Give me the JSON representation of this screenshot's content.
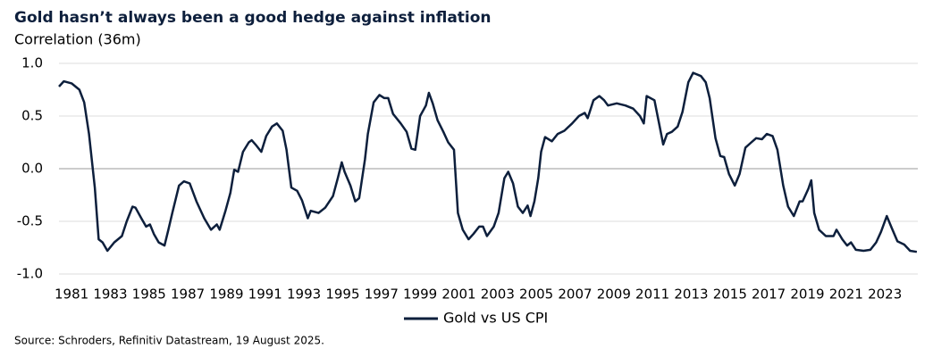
{
  "chart_data": {
    "type": "line",
    "title": "Gold hasn’t always been a good hedge against inflation",
    "subtitle": "Correlation (36m)",
    "source": "Source: Schroders, Refinitiv Datastream, 19 August 2025.",
    "xlim": [
      1980.35,
      2024.7
    ],
    "xticks": [
      1981,
      1983,
      1985,
      1987,
      1989,
      1991,
      1993,
      1995,
      1997,
      1999,
      2001,
      2003,
      2005,
      2007,
      2009,
      2011,
      2013,
      2015,
      2017,
      2019,
      2021,
      2023
    ],
    "ylim": [
      -1,
      1
    ],
    "yticks": [
      {
        "value": 1,
        "label": "1.0"
      },
      0.5,
      {
        "value": 0,
        "label": "0.0"
      },
      -0.5,
      {
        "value": -1,
        "label": "-1.0"
      }
    ],
    "grid": true,
    "legend": "bottom",
    "x": [
      1980.35,
      1980.6,
      1981.0,
      1981.4,
      1981.65,
      1981.9,
      1982.2,
      1982.4,
      1982.6,
      1982.85,
      1983.2,
      1983.6,
      1983.85,
      1984.15,
      1984.3,
      1984.6,
      1984.85,
      1985.05,
      1985.25,
      1985.5,
      1985.8,
      1986.0,
      1986.2,
      1986.55,
      1986.8,
      1987.1,
      1987.45,
      1987.85,
      1988.2,
      1988.5,
      1988.65,
      1988.95,
      1989.2,
      1989.4,
      1989.6,
      1989.85,
      1990.15,
      1990.3,
      1990.5,
      1990.8,
      1991.05,
      1991.35,
      1991.6,
      1991.9,
      1992.1,
      1992.35,
      1992.65,
      1992.9,
      1993.2,
      1993.35,
      1993.75,
      1994.1,
      1994.5,
      1994.75,
      1994.95,
      1995.1,
      1995.4,
      1995.65,
      1995.85,
      1996.15,
      1996.3,
      1996.6,
      1996.9,
      1997.15,
      1997.35,
      1997.6,
      1998.0,
      1998.3,
      1998.55,
      1998.75,
      1999.0,
      1999.3,
      1999.45,
      1999.65,
      1999.9,
      2000.2,
      2000.45,
      2000.75,
      2000.95,
      2001.2,
      2001.5,
      2001.75,
      2002.05,
      2002.25,
      2002.45,
      2002.8,
      2003.05,
      2003.35,
      2003.55,
      2003.8,
      2004.05,
      2004.3,
      2004.55,
      2004.7,
      2004.9,
      2005.1,
      2005.25,
      2005.45,
      2005.8,
      2006.1,
      2006.45,
      2006.85,
      2007.2,
      2007.5,
      2007.65,
      2007.95,
      2008.25,
      2008.5,
      2008.7,
      2009.15,
      2009.6,
      2010.0,
      2010.35,
      2010.55,
      2010.7,
      2011.1,
      2011.35,
      2011.55,
      2011.75,
      2012.0,
      2012.3,
      2012.55,
      2012.85,
      2013.1,
      2013.5,
      2013.75,
      2013.95,
      2014.25,
      2014.5,
      2014.7,
      2014.95,
      2015.25,
      2015.5,
      2015.8,
      2016.1,
      2016.35,
      2016.65,
      2016.9,
      2017.2,
      2017.45,
      2017.75,
      2018.0,
      2018.3,
      2018.6,
      2018.75,
      2019.05,
      2019.2,
      2019.35,
      2019.6,
      2019.95,
      2020.35,
      2020.5,
      2020.8,
      2021.05,
      2021.25,
      2021.5,
      2021.9,
      2022.25,
      2022.55,
      2022.8,
      2023.1,
      2023.35,
      2023.65,
      2024.0,
      2024.3,
      2024.65
    ],
    "series": [
      {
        "name": "Gold vs US CPI",
        "color": "#0d1f3c",
        "values": [
          0.78,
          0.83,
          0.81,
          0.75,
          0.63,
          0.33,
          -0.18,
          -0.67,
          -0.7,
          -0.78,
          -0.7,
          -0.64,
          -0.5,
          -0.36,
          -0.37,
          -0.47,
          -0.55,
          -0.53,
          -0.62,
          -0.7,
          -0.73,
          -0.58,
          -0.42,
          -0.16,
          -0.12,
          -0.14,
          -0.31,
          -0.47,
          -0.58,
          -0.53,
          -0.58,
          -0.4,
          -0.23,
          -0.01,
          -0.03,
          0.16,
          0.25,
          0.27,
          0.23,
          0.16,
          0.31,
          0.4,
          0.43,
          0.36,
          0.18,
          -0.18,
          -0.21,
          -0.3,
          -0.47,
          -0.4,
          -0.42,
          -0.37,
          -0.26,
          -0.09,
          0.06,
          -0.03,
          -0.16,
          -0.31,
          -0.28,
          0.09,
          0.33,
          0.63,
          0.7,
          0.67,
          0.67,
          0.52,
          0.43,
          0.35,
          0.19,
          0.18,
          0.5,
          0.6,
          0.72,
          0.62,
          0.46,
          0.35,
          0.25,
          0.18,
          -0.42,
          -0.58,
          -0.67,
          -0.62,
          -0.55,
          -0.55,
          -0.64,
          -0.55,
          -0.42,
          -0.09,
          -0.03,
          -0.14,
          -0.36,
          -0.42,
          -0.35,
          -0.45,
          -0.31,
          -0.09,
          0.16,
          0.3,
          0.26,
          0.33,
          0.36,
          0.43,
          0.5,
          0.53,
          0.48,
          0.65,
          0.69,
          0.65,
          0.6,
          0.62,
          0.6,
          0.57,
          0.5,
          0.43,
          0.69,
          0.65,
          0.42,
          0.23,
          0.33,
          0.35,
          0.4,
          0.54,
          0.82,
          0.91,
          0.88,
          0.82,
          0.67,
          0.29,
          0.12,
          0.11,
          -0.05,
          -0.16,
          -0.05,
          0.2,
          0.25,
          0.29,
          0.28,
          0.33,
          0.31,
          0.18,
          -0.16,
          -0.36,
          -0.45,
          -0.31,
          -0.31,
          -0.19,
          -0.11,
          -0.42,
          -0.58,
          -0.64,
          -0.64,
          -0.58,
          -0.67,
          -0.73,
          -0.7,
          -0.77,
          -0.78,
          -0.77,
          -0.7,
          -0.6,
          -0.45,
          -0.56,
          -0.69,
          -0.72,
          -0.78,
          -0.79
        ]
      }
    ]
  }
}
